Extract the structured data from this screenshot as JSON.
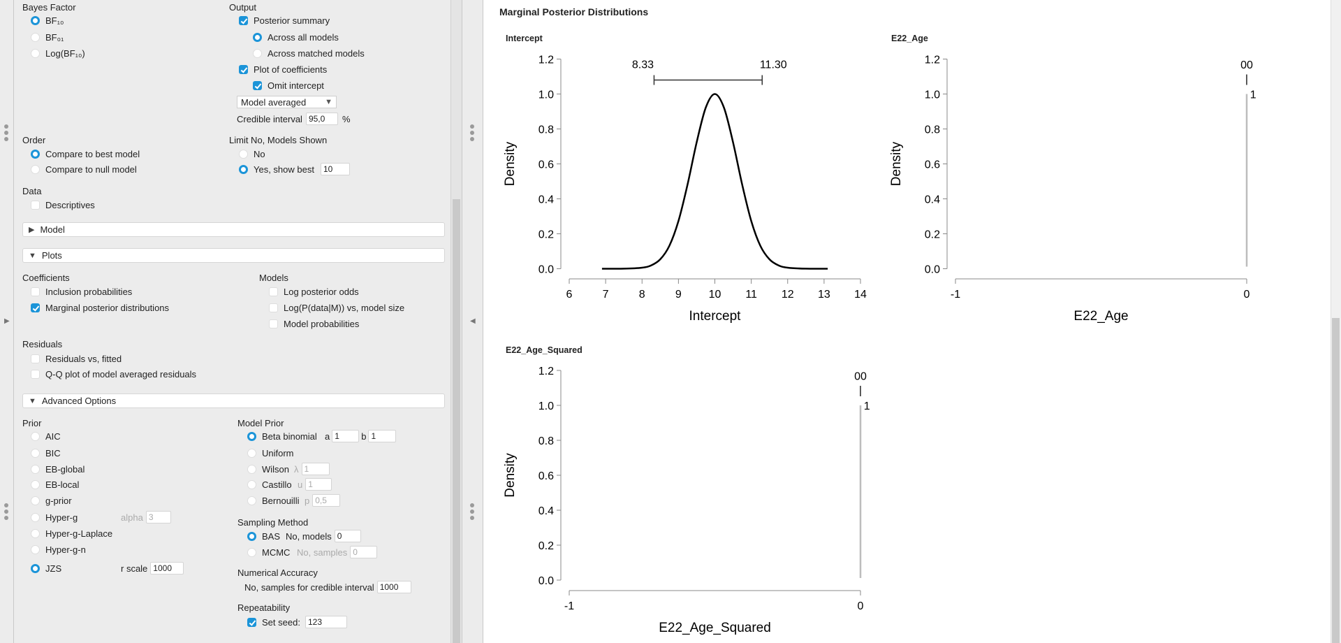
{
  "options": {
    "bayes_factor": {
      "label": "Bayes Factor",
      "items": [
        {
          "label": "BF₁₀",
          "selected": true
        },
        {
          "label": "BF₀₁",
          "selected": false
        },
        {
          "label": "Log(BF₁₀)",
          "selected": false
        }
      ]
    },
    "output": {
      "label": "Output",
      "posterior_summary": "Posterior summary",
      "across_all": "Across all models",
      "across_matched": "Across matched models",
      "plot_coefficients": "Plot of coefficients",
      "omit_intercept": "Omit intercept",
      "dropdown_value": "Model averaged",
      "credible_interval_label": "Credible interval",
      "credible_interval_value": "95,0",
      "percent": "%"
    },
    "order": {
      "label": "Order",
      "best": "Compare to best model",
      "null": "Compare to null model"
    },
    "limit": {
      "label": "Limit No, Models Shown",
      "no": "No",
      "yes": "Yes, show best",
      "value": "10"
    },
    "data": {
      "label": "Data",
      "descriptives": "Descriptives"
    },
    "sections": {
      "model": "Model",
      "plots": "Plots",
      "advanced": "Advanced Options"
    },
    "plots": {
      "coefficients": "Coefficients",
      "inclusion": "Inclusion probabilities",
      "marginal": "Marginal posterior distributions",
      "models": "Models",
      "log_odds": "Log posterior odds",
      "logp": "Log(P(data|M)) vs, model size",
      "model_probs": "Model probabilities",
      "residuals": "Residuals",
      "resid_fitted": "Residuals vs, fitted",
      "qq": "Q-Q plot of model averaged residuals"
    },
    "prior": {
      "label": "Prior",
      "items": [
        "AIC",
        "BIC",
        "EB-global",
        "EB-local",
        "g-prior",
        "Hyper-g",
        "Hyper-g-Laplace",
        "Hyper-g-n",
        "JZS"
      ],
      "alpha_label": "alpha",
      "alpha_value": "3",
      "rscale_label": "r scale",
      "rscale_value": "1000"
    },
    "model_prior": {
      "label": "Model Prior",
      "beta": "Beta binomial",
      "a_label": "a",
      "a_value": "1",
      "b_label": "b",
      "b_value": "1",
      "uniform": "Uniform",
      "wilson": "Wilson",
      "lambda_label": "λ",
      "lambda_value": "1",
      "castillo": "Castillo",
      "u_label": "u",
      "u_value": "1",
      "bernouilli": "Bernouilli",
      "p_label": "p",
      "p_value": "0,5"
    },
    "sampling": {
      "label": "Sampling Method",
      "bas": "BAS",
      "models_label": "No, models",
      "models_value": "0",
      "mcmc": "MCMC",
      "samples_label": "No, samples",
      "samples_value": "0"
    },
    "numerical": {
      "label": "Numerical Accuracy",
      "samples_label": "No, samples for credible interval",
      "samples_value": "1000"
    },
    "repeat": {
      "label": "Repeatability",
      "seed_label": "Set seed:",
      "seed_value": "123"
    }
  },
  "output_title": "Marginal Posterior Distributions",
  "colors": {
    "accent": "#1b94d8",
    "curve": "#000000",
    "spike": "#bdbdbd"
  },
  "chart_data": [
    {
      "type": "line",
      "title": "Intercept",
      "xlabel": "Intercept",
      "ylabel": "Density",
      "xlim": [
        6,
        14
      ],
      "ylim": [
        0,
        1.2
      ],
      "xticks": [
        "6",
        "7",
        "8",
        "9",
        "10",
        "11",
        "12",
        "13",
        "14"
      ],
      "yticks": [
        "0.0",
        "0.2",
        "0.4",
        "0.6",
        "0.8",
        "1.0",
        "1.2"
      ],
      "x": [
        6.9,
        7.5,
        8,
        8.25,
        8.5,
        8.75,
        9,
        9.25,
        9.5,
        9.75,
        10,
        10.25,
        10.5,
        10.75,
        11,
        11.25,
        11.5,
        11.75,
        12,
        12.5,
        13.1
      ],
      "y": [
        0,
        0.0003,
        0.006,
        0.019,
        0.054,
        0.131,
        0.273,
        0.482,
        0.723,
        0.922,
        1,
        0.922,
        0.723,
        0.482,
        0.273,
        0.131,
        0.054,
        0.019,
        0.006,
        0.0003,
        0
      ],
      "ci": {
        "lower": 8.33,
        "upper": 11.3,
        "lower_label": "8.33",
        "upper_label": "11.30",
        "y": 1.08
      }
    },
    {
      "type": "line",
      "title": "E22_Age",
      "xlabel": "E22_Age",
      "ylabel": "Density",
      "xlim": [
        -1,
        0
      ],
      "ylim": [
        0,
        1.2
      ],
      "xticks": [
        "-1",
        "0"
      ],
      "yticks": [
        "0.0",
        "0.2",
        "0.4",
        "0.6",
        "0.8",
        "1.0",
        "1.2"
      ],
      "spike": {
        "x": 0,
        "height": 1.0
      },
      "annotations": [
        {
          "text": "00",
          "x": 0,
          "y": 1.17
        },
        {
          "text": "|",
          "x": 0,
          "y": 1.09
        },
        {
          "text": "1",
          "x": 0.01,
          "y": 1.0
        }
      ]
    },
    {
      "type": "line",
      "title": "E22_Age_Squared",
      "xlabel": "E22_Age_Squared",
      "ylabel": "Density",
      "xlim": [
        -1,
        0
      ],
      "ylim": [
        0,
        1.2
      ],
      "xticks": [
        "-1",
        "0"
      ],
      "yticks": [
        "0.0",
        "0.2",
        "0.4",
        "0.6",
        "0.8",
        "1.0",
        "1.2"
      ],
      "spike": {
        "x": 0,
        "height": 1.0
      },
      "annotations": [
        {
          "text": "00",
          "x": 0,
          "y": 1.17
        },
        {
          "text": "|",
          "x": 0,
          "y": 1.09
        },
        {
          "text": "1",
          "x": 0.01,
          "y": 1.0
        }
      ]
    }
  ]
}
